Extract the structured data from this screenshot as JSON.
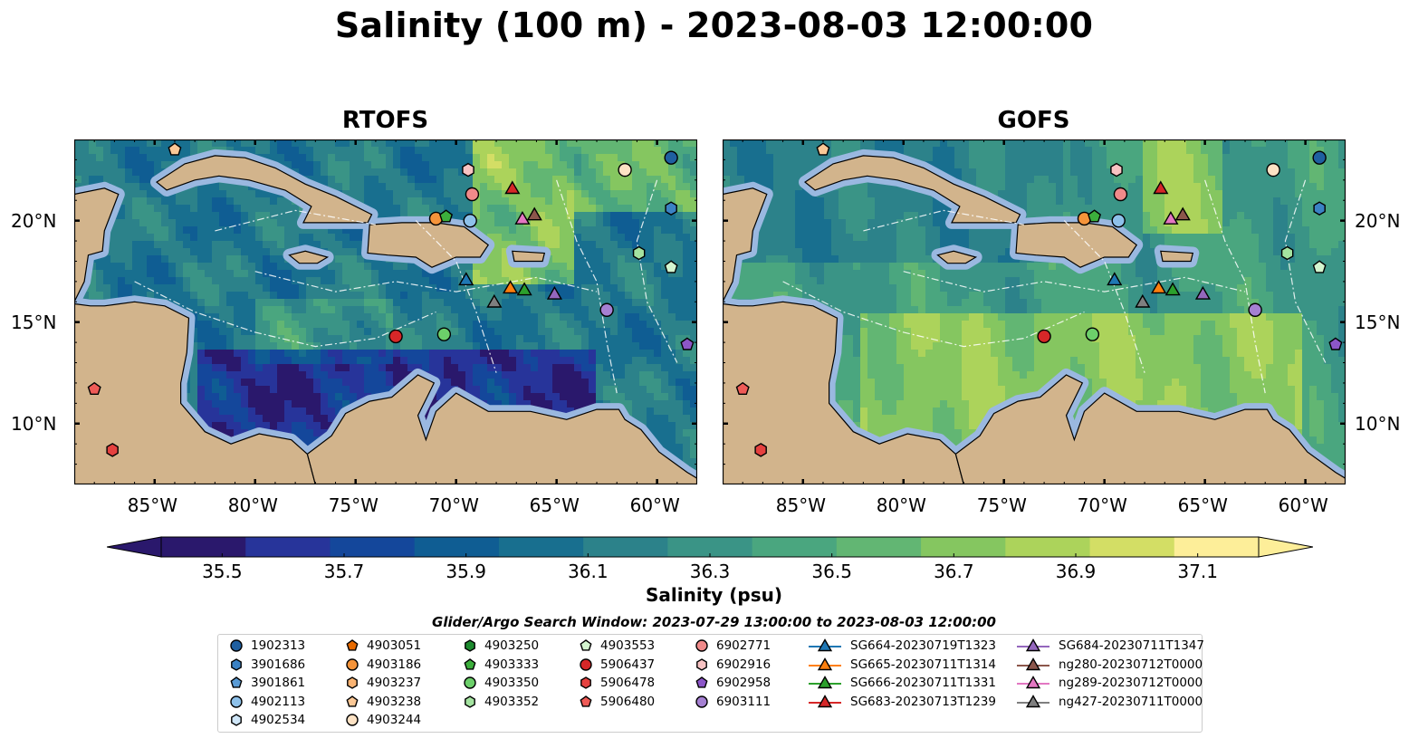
{
  "title": "Salinity (100 m) - 2023-08-03 12:00:00",
  "panels": [
    {
      "title": "RTOFS"
    },
    {
      "title": "GOFS"
    }
  ],
  "lon_ticks": [
    "85°W",
    "80°W",
    "75°W",
    "70°W",
    "65°W",
    "60°W"
  ],
  "lat_ticks": [
    "20°N",
    "15°N",
    "10°N"
  ],
  "map_extent": {
    "lon": [
      -89,
      -58
    ],
    "lat": [
      7,
      24
    ]
  },
  "colorbar": {
    "label": "Salinity (psu)",
    "ticks": [
      "35.5",
      "35.7",
      "35.9",
      "36.1",
      "36.3",
      "36.5",
      "36.7",
      "36.9",
      "37.1"
    ],
    "range": [
      35.4,
      37.2
    ],
    "extend": "both",
    "colormap": "haline"
  },
  "legend": {
    "title": "Glider/Argo Search Window: 2023-07-29 13:00:00 to 2023-08-03 12:00:00",
    "columns": [
      [
        {
          "label": "1902313",
          "marker": "circle",
          "color": "#1f5fa0"
        },
        {
          "label": "3901686",
          "marker": "hexagon",
          "color": "#3b82c4"
        },
        {
          "label": "3901861",
          "marker": "pentagon",
          "color": "#5a9bd5"
        },
        {
          "label": "4902113",
          "marker": "circle",
          "color": "#8ec1ea"
        },
        {
          "label": "4902534",
          "marker": "hexagon",
          "color": "#cfe6f8"
        }
      ],
      [
        {
          "label": "4903051",
          "marker": "pentagon",
          "color": "#e66a00"
        },
        {
          "label": "4903186",
          "marker": "circle",
          "color": "#f5943a"
        },
        {
          "label": "4903237",
          "marker": "hexagon",
          "color": "#f9b372"
        },
        {
          "label": "4903238",
          "marker": "pentagon",
          "color": "#fbc896"
        },
        {
          "label": "4903244",
          "marker": "circle",
          "color": "#fde2c4"
        }
      ],
      [
        {
          "label": "4903250",
          "marker": "hexagon",
          "color": "#1c8a2e"
        },
        {
          "label": "4903333",
          "marker": "pentagon",
          "color": "#3cae3c"
        },
        {
          "label": "4903350",
          "marker": "circle",
          "color": "#6ccf6a"
        },
        {
          "label": "4903352",
          "marker": "hexagon",
          "color": "#a4e3a0"
        }
      ],
      [
        {
          "label": "4903553",
          "marker": "pentagon",
          "color": "#d4f5cf"
        },
        {
          "label": "5906437",
          "marker": "circle",
          "color": "#d62728"
        },
        {
          "label": "5906478",
          "marker": "hexagon",
          "color": "#e5413f"
        },
        {
          "label": "5906480",
          "marker": "pentagon",
          "color": "#ef5b57"
        }
      ],
      [
        {
          "label": "6902771",
          "marker": "circle",
          "color": "#f08a8a"
        },
        {
          "label": "6902916",
          "marker": "hexagon",
          "color": "#f8c3c3"
        },
        {
          "label": "6902958",
          "marker": "pentagon",
          "color": "#8c56c8"
        },
        {
          "label": "6903111",
          "marker": "circle",
          "color": "#a580d2"
        }
      ],
      [
        {
          "label": "SG664-20230719T1323",
          "marker": "triangle",
          "color": "#1f77b4"
        },
        {
          "label": "SG665-20230711T1314",
          "marker": "triangle",
          "color": "#ff7f0e"
        },
        {
          "label": "SG666-20230711T1331",
          "marker": "triangle",
          "color": "#2ca02c"
        },
        {
          "label": "SG683-20230713T1239",
          "marker": "triangle",
          "color": "#d62728"
        }
      ],
      [
        {
          "label": "SG684-20230711T1347",
          "marker": "triangle",
          "color": "#9467bd"
        },
        {
          "label": "ng280-20230712T0000",
          "marker": "triangle",
          "color": "#8c564b"
        },
        {
          "label": "ng289-20230712T0000",
          "marker": "triangle",
          "color": "#e377c2"
        },
        {
          "label": "ng427-20230711T0000",
          "marker": "triangle",
          "color": "#7f7f7f"
        }
      ]
    ]
  },
  "observations": [
    {
      "label": "1902313",
      "lon": -59.3,
      "lat": 23.1
    },
    {
      "label": "3901686",
      "lon": -59.3,
      "lat": 20.6
    },
    {
      "label": "6902958",
      "lon": -58.5,
      "lat": 13.9
    },
    {
      "label": "6903111",
      "lon": -62.5,
      "lat": 15.6
    },
    {
      "label": "4903244",
      "lon": -61.6,
      "lat": 22.5
    },
    {
      "label": "4903352",
      "lon": -60.9,
      "lat": 18.4
    },
    {
      "label": "4903553",
      "lon": -59.3,
      "lat": 17.7
    },
    {
      "label": "6902916",
      "lon": -69.4,
      "lat": 22.5
    },
    {
      "label": "6902771",
      "lon": -69.2,
      "lat": 21.3
    },
    {
      "label": "4902113",
      "lon": -69.3,
      "lat": 20.0
    },
    {
      "label": "4903186",
      "lon": -71.0,
      "lat": 20.1
    },
    {
      "label": "4903333",
      "lon": -70.5,
      "lat": 20.2
    },
    {
      "label": "5906437",
      "lon": -73.0,
      "lat": 14.3
    },
    {
      "label": "4903350",
      "lon": -70.6,
      "lat": 14.4
    },
    {
      "label": "4903238",
      "lon": -84.0,
      "lat": 23.5
    },
    {
      "label": "5906480",
      "lon": -88.0,
      "lat": 11.7
    },
    {
      "label": "5906478",
      "lon": -87.1,
      "lat": 8.7
    },
    {
      "label": "SG683-20230713T1239",
      "lon": -67.2,
      "lat": 21.6
    },
    {
      "label": "ng289-20230712T0000",
      "lon": -66.7,
      "lat": 20.1
    },
    {
      "label": "ng280-20230712T0000",
      "lon": -66.1,
      "lat": 20.3
    },
    {
      "label": "SG664-20230719T1323",
      "lon": -69.5,
      "lat": 17.1
    },
    {
      "label": "ng427-20230711T0000",
      "lon": -68.1,
      "lat": 16.0
    },
    {
      "label": "SG665-20230711T1314",
      "lon": -67.3,
      "lat": 16.7
    },
    {
      "label": "SG666-20230711T1331",
      "lon": -66.6,
      "lat": 16.6
    },
    {
      "label": "SG684-20230711T1347",
      "lon": -65.1,
      "lat": 16.4
    }
  ],
  "colors": {
    "land": "#d2b48c",
    "shelf": "#9ab8e0",
    "haline_low": "#2a186c",
    "haline_high": "#fdee99"
  }
}
